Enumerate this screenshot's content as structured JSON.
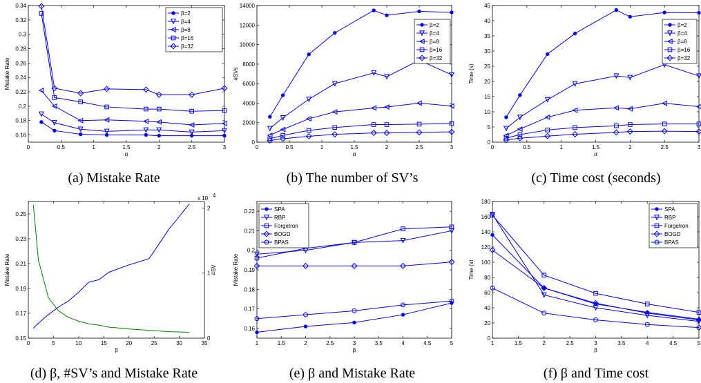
{
  "chart_data": [
    {
      "type": "line",
      "caption": "(a) Mistake Rate",
      "xlabel": "α",
      "ylabel": "Mistake Rate",
      "xlim": [
        0,
        3
      ],
      "ylim": [
        0.15,
        0.34
      ],
      "xticks": [
        "0",
        "0.5",
        "1",
        "1.5",
        "2",
        "2.5",
        "3"
      ],
      "yticks": [
        "0.16",
        "0.18",
        "0.2",
        "0.22",
        "0.24",
        "0.26",
        "0.28",
        "0.3",
        "0.32",
        "0.34"
      ],
      "grid": false,
      "legend": "top-right",
      "color": "#0000ff",
      "x": [
        0.2,
        0.4,
        0.8,
        1.2,
        1.8,
        2.0,
        2.5,
        3.0
      ],
      "series": [
        {
          "name": "β=2",
          "marker": "dot",
          "values": [
            0.178,
            0.166,
            0.161,
            0.16,
            0.16,
            0.159,
            0.159,
            0.159
          ]
        },
        {
          "name": "β=4",
          "marker": "tri-down",
          "values": [
            0.189,
            0.177,
            0.168,
            0.165,
            0.167,
            0.167,
            0.164,
            0.166
          ]
        },
        {
          "name": "β=8",
          "marker": "tri-left",
          "values": [
            0.222,
            0.2,
            0.18,
            0.181,
            0.179,
            0.178,
            0.174,
            0.176
          ]
        },
        {
          "name": "β=16",
          "marker": "square",
          "values": [
            0.329,
            0.212,
            0.206,
            0.199,
            0.196,
            0.196,
            0.193,
            0.194
          ]
        },
        {
          "name": "β=32",
          "marker": "diamond",
          "values": [
            0.339,
            0.225,
            0.218,
            0.224,
            0.223,
            0.216,
            0.216,
            0.225
          ]
        }
      ]
    },
    {
      "type": "line",
      "caption": "(b) The number of SV’s",
      "xlabel": "α",
      "ylabel": "#SVs",
      "xlim": [
        0,
        3
      ],
      "ylim": [
        0,
        14000
      ],
      "xticks": [
        "0",
        "0.5",
        "1",
        "1.5",
        "2",
        "2.5",
        "3"
      ],
      "yticks": [
        "0",
        "2000",
        "4000",
        "6000",
        "8000",
        "10000",
        "12000",
        "14000"
      ],
      "grid": false,
      "legend": "right",
      "color": "#0000ff",
      "x": [
        0.2,
        0.4,
        0.8,
        1.2,
        1.8,
        2.0,
        2.5,
        3.0
      ],
      "series": [
        {
          "name": "β=2",
          "marker": "dot",
          "values": [
            2600,
            4800,
            9000,
            11200,
            13500,
            13000,
            13400,
            13300
          ]
        },
        {
          "name": "β=4",
          "marker": "tri-down",
          "values": [
            1400,
            2500,
            4400,
            6000,
            7100,
            6700,
            8400,
            6900
          ]
        },
        {
          "name": "β=8",
          "marker": "tri-left",
          "values": [
            700,
            1300,
            2400,
            3100,
            3500,
            3600,
            4000,
            3700
          ]
        },
        {
          "name": "β=16",
          "marker": "square",
          "values": [
            350,
            700,
            1200,
            1500,
            1800,
            1800,
            1850,
            1900
          ]
        },
        {
          "name": "β=32",
          "marker": "diamond",
          "values": [
            180,
            350,
            600,
            800,
            950,
            950,
            1000,
            1050
          ]
        }
      ]
    },
    {
      "type": "line",
      "caption": "(c) Time cost (seconds)",
      "xlabel": "α",
      "ylabel": "Time (s)",
      "xlim": [
        0,
        3
      ],
      "ylim": [
        0,
        45
      ],
      "xticks": [
        "0",
        "0.5",
        "1",
        "1.5",
        "2",
        "2.5",
        "3"
      ],
      "yticks": [
        "0",
        "5",
        "10",
        "15",
        "20",
        "25",
        "30",
        "35",
        "40",
        "45"
      ],
      "grid": false,
      "legend": "right",
      "color": "#0000ff",
      "x": [
        0.2,
        0.4,
        0.8,
        1.2,
        1.8,
        2.0,
        2.5,
        3.0
      ],
      "series": [
        {
          "name": "β=2",
          "marker": "dot",
          "values": [
            8.2,
            15.5,
            29,
            35.8,
            43.5,
            41.3,
            42.7,
            42.6
          ]
        },
        {
          "name": "β=4",
          "marker": "tri-down",
          "values": [
            4.5,
            8.2,
            14,
            19.2,
            21.8,
            21.3,
            25.5,
            21.8
          ]
        },
        {
          "name": "β=8",
          "marker": "tri-left",
          "values": [
            2.2,
            4.3,
            8.2,
            10.5,
            11.3,
            11.0,
            12.8,
            11.7
          ]
        },
        {
          "name": "β=16",
          "marker": "square",
          "values": [
            1.3,
            2.5,
            4.0,
            4.8,
            5.4,
            5.8,
            6.0,
            6.0
          ]
        },
        {
          "name": "β=32",
          "marker": "diamond",
          "values": [
            0.7,
            1.3,
            2.0,
            2.6,
            3.2,
            3.5,
            3.6,
            3.5
          ]
        }
      ]
    },
    {
      "type": "line",
      "caption": "(d) β, #SV’s and Mistake Rate",
      "xlabel": "β",
      "ylabel": "Mistake Rate",
      "ylabel_right": "#SV",
      "right_axis_multiplier": "x 10",
      "right_axis_exponent": "4",
      "xlim": [
        0,
        35
      ],
      "ylim": [
        0.15,
        0.26
      ],
      "ylim_right": [
        0,
        2.1
      ],
      "xticks": [
        "0",
        "5",
        "10",
        "15",
        "20",
        "25",
        "30",
        "35"
      ],
      "yticks": [
        "0.15",
        "0.17",
        "0.19",
        "0.21",
        "0.23",
        "0.25"
      ],
      "yticks_right": [
        "0",
        "1",
        "2"
      ],
      "grid": false,
      "legend": "none",
      "series": [
        {
          "axis": "left",
          "color": "#0000ff",
          "x": [
            1,
            2,
            4,
            6,
            8,
            10,
            12,
            14,
            16,
            20,
            24,
            28,
            32
          ],
          "values": [
            0.158,
            0.162,
            0.169,
            0.175,
            0.18,
            0.187,
            0.195,
            0.197,
            0.203,
            0.209,
            0.214,
            0.238,
            0.258
          ]
        },
        {
          "axis": "right",
          "color": "#008000",
          "x": [
            1,
            2,
            4,
            6,
            8,
            10,
            12,
            14,
            16,
            20,
            24,
            28,
            32
          ],
          "values": [
            2.05,
            1.2,
            0.62,
            0.42,
            0.32,
            0.26,
            0.22,
            0.2,
            0.17,
            0.14,
            0.12,
            0.1,
            0.09
          ]
        }
      ]
    },
    {
      "type": "line",
      "caption": "(e) β and Mistake Rate",
      "xlabel": "β",
      "ylabel": "Mistake Rate",
      "xlim": [
        1,
        5
      ],
      "ylim": [
        0.155,
        0.225
      ],
      "xticks": [
        "1",
        "1.5",
        "2",
        "2.5",
        "3",
        "3.5",
        "4",
        "4.5",
        "5"
      ],
      "yticks": [
        "0.16",
        "0.17",
        "0.18",
        "0.19",
        "0.2",
        "0.21",
        "0.22"
      ],
      "grid": false,
      "legend": "top-left",
      "color": "#0000ff",
      "x": [
        1,
        2,
        3,
        4,
        5
      ],
      "series": [
        {
          "name": "SPA",
          "marker": "dot",
          "values": [
            0.158,
            0.161,
            0.163,
            0.167,
            0.173
          ]
        },
        {
          "name": "RBP",
          "marker": "tri-down",
          "values": [
            0.198,
            0.2,
            0.204,
            0.205,
            0.21
          ]
        },
        {
          "name": "Forgetron",
          "marker": "square",
          "values": [
            0.196,
            0.201,
            0.204,
            0.211,
            0.212
          ]
        },
        {
          "name": "BOGD",
          "marker": "diamond",
          "values": [
            0.192,
            0.192,
            0.192,
            0.192,
            0.194
          ]
        },
        {
          "name": "BPAS",
          "marker": "circle",
          "values": [
            0.165,
            0.167,
            0.169,
            0.172,
            0.174
          ]
        }
      ]
    },
    {
      "type": "line",
      "caption": "(f) β and Time cost",
      "xlabel": "β",
      "ylabel": "Time (s)",
      "xlim": [
        1,
        5
      ],
      "ylim": [
        0,
        180
      ],
      "xticks": [
        "1",
        "1.5",
        "2",
        "2.5",
        "3",
        "3.5",
        "4",
        "4.5",
        "5"
      ],
      "yticks": [
        "0",
        "20",
        "40",
        "60",
        "80",
        "100",
        "120",
        "140",
        "160",
        "180"
      ],
      "grid": false,
      "legend": "top-right",
      "color": "#0000ff",
      "x": [
        1,
        2,
        3,
        4,
        5
      ],
      "series": [
        {
          "name": "SPA",
          "marker": "dot",
          "values": [
            136,
            66,
            45,
            34,
            25
          ]
        },
        {
          "name": "RBP",
          "marker": "tri-down",
          "values": [
            163,
            57,
            40,
            30,
            22
          ]
        },
        {
          "name": "Forgetron",
          "marker": "square",
          "values": [
            162,
            83,
            59,
            45,
            34
          ]
        },
        {
          "name": "BOGD",
          "marker": "diamond",
          "values": [
            116,
            66,
            46,
            33,
            24
          ]
        },
        {
          "name": "BPAS",
          "marker": "circle",
          "values": [
            66,
            33,
            24,
            18,
            14
          ]
        }
      ]
    }
  ]
}
